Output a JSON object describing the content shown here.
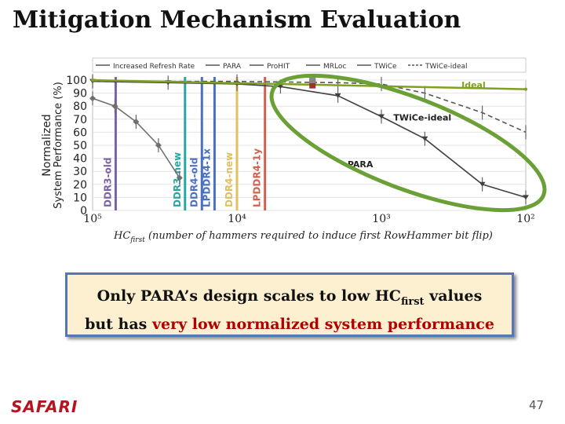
{
  "slide": {
    "title": "Mitigation Mechanism Evaluation",
    "page_number": "47",
    "logo_text": "SAFARI"
  },
  "callout": {
    "line1_prefix": "Only PARA’s design scales to low HC",
    "line1_sub": "first",
    "line1_suffix": " values",
    "line2_prefix": "but has ",
    "line2_highlight": "very low normalized system performance"
  },
  "chart_data": {
    "type": "line",
    "xscale": "log-reversed",
    "xlim": [
      100000,
      100
    ],
    "ylim": [
      0,
      100
    ],
    "xticks": [
      {
        "value": 100000,
        "label": "10⁵"
      },
      {
        "value": 10000,
        "label": "10⁴"
      },
      {
        "value": 1000,
        "label": "10³"
      },
      {
        "value": 100,
        "label": "10²"
      }
    ],
    "yticks": [
      0,
      10,
      20,
      30,
      40,
      50,
      60,
      70,
      80,
      90,
      100
    ],
    "xlabel_main": "HC",
    "xlabel_sub": "first",
    "xlabel_rest": " (number of hammers required to induce first RowHammer bit flip)",
    "ylabel_line1": "Normalized",
    "ylabel_line2": "System Performance (%)",
    "legend": [
      "Increased Refresh Rate",
      "PARA",
      "ProHIT",
      "MRLoc",
      "TWiCe",
      "TWiCe-ideal"
    ],
    "series": [
      {
        "name": "Increased Refresh Rate",
        "color": "#707070",
        "x": [
          100000,
          70000,
          50000,
          35000,
          25000
        ],
        "y": [
          86,
          80,
          68,
          50,
          25
        ]
      },
      {
        "name": "PARA",
        "color": "#404040",
        "x": [
          100000,
          30000,
          10000,
          5000,
          2000,
          1000,
          500,
          200,
          100
        ],
        "y": [
          99,
          98,
          97,
          95,
          88,
          72,
          55,
          20,
          10
        ]
      },
      {
        "name": "TWiCe-ideal",
        "color": "#555555",
        "x": [
          100000,
          10000,
          2000,
          1000,
          500,
          200,
          100
        ],
        "y": [
          99,
          99,
          98,
          97,
          90,
          75,
          60
        ]
      },
      {
        "name": "Ideal",
        "color": "#80a020",
        "x": [
          100000,
          100
        ],
        "y": [
          100,
          93
        ]
      }
    ],
    "points": [
      {
        "series": "ProHIT",
        "x": 3000,
        "y": 99,
        "color": "#333333"
      },
      {
        "series": "MRLoc",
        "x": 3000,
        "y": 96,
        "color": "#a03030"
      },
      {
        "series": "TWiCe",
        "x": 3000,
        "y": 100,
        "color": "#888888"
      }
    ],
    "vlines": [
      {
        "label": "DDR3-old",
        "x": 69200,
        "color": "#7b62a6"
      },
      {
        "label": "DDR3-new",
        "x": 22900,
        "color": "#2aa6a0"
      },
      {
        "label": "DDR4-old",
        "x": 17500,
        "color": "#4a70c0"
      },
      {
        "label": "LPDDR4-1x",
        "x": 14300,
        "color": "#4a70c0"
      },
      {
        "label": "DDR4-new",
        "x": 10000,
        "color": "#e0c060"
      },
      {
        "label": "LPDDR4-1y",
        "x": 6400,
        "color": "#d06050"
      }
    ],
    "annotations": [
      {
        "text": "Ideal",
        "x": 230,
        "y": 94,
        "color": "#80a020"
      },
      {
        "text": "TWiCe-ideal",
        "x": 520,
        "y": 69,
        "color": "#222222"
      },
      {
        "text": "PARA",
        "x": 1400,
        "y": 33,
        "color": "#222222"
      }
    ],
    "highlight": "ellipse"
  }
}
